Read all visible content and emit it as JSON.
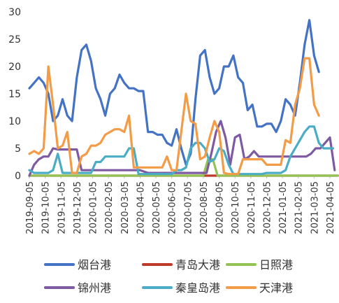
{
  "chart_data": {
    "type": "line",
    "title": "",
    "xlabel": "",
    "ylabel": "",
    "ylim": [
      0,
      30
    ],
    "yticks": [
      0,
      5,
      10,
      15,
      20,
      25,
      30
    ],
    "xticks": [
      "2019-09-05",
      "2019-10-05",
      "2019-11-05",
      "2019-12-05",
      "2020-01-05",
      "2020-02-05",
      "2020-03-05",
      "2020-04-05",
      "2020-05-05",
      "2020-06-05",
      "2020-07-05",
      "2020-08-05",
      "2020-09-05",
      "2020-10-05",
      "2020-11-05",
      "2020-12-05",
      "2021-01-05",
      "2021-02-05",
      "2021-03-05",
      "2021-04-05"
    ],
    "grid": false,
    "legend_position": "bottom",
    "series": [
      {
        "name": "烟台港",
        "color": "#4472c4",
        "x": [
          0,
          0.3,
          0.6,
          0.9,
          1.2,
          1.5,
          1.8,
          2.1,
          2.4,
          2.7,
          3.0,
          3.3,
          3.6,
          3.9,
          4.2,
          4.5,
          4.8,
          5.1,
          5.4,
          5.7,
          6.0,
          6.3,
          6.6,
          6.9,
          7.2,
          7.5,
          7.8,
          8.1,
          8.4,
          8.7,
          9.0,
          9.3,
          9.6,
          9.9,
          10.2,
          10.5,
          10.8,
          11.1,
          11.4,
          11.7,
          12.0,
          12.3,
          12.6,
          12.9,
          13.2,
          13.5,
          13.8,
          14.1,
          14.4,
          14.7,
          15.0,
          15.3,
          15.6,
          15.9,
          16.2,
          16.5,
          16.8,
          17.1,
          17.4,
          17.7,
          18.0,
          18.3,
          18.6,
          18.9,
          19.2,
          19.5
        ],
        "values": [
          16,
          17,
          18,
          17,
          15,
          10,
          11,
          14,
          11,
          10,
          18,
          23,
          24,
          21,
          16,
          14,
          11,
          15,
          16,
          18.5,
          17,
          16,
          16,
          15.5,
          15.5,
          8,
          8,
          7.5,
          7.5,
          6,
          5.5,
          8.5,
          5,
          2,
          4,
          14,
          22,
          23,
          18,
          15,
          16,
          20,
          20,
          22,
          18,
          17,
          12,
          13,
          9,
          9,
          9.5,
          9.5,
          8,
          10,
          14,
          13,
          11,
          17,
          24,
          28.5,
          22,
          19,
          null,
          null,
          null,
          null
        ]
      },
      {
        "name": "青岛大港",
        "color": "#c0392b",
        "x": [
          0,
          19.5
        ],
        "values": [
          0,
          0
        ]
      },
      {
        "name": "日照港",
        "color": "#92c353",
        "x": [
          0,
          0.5,
          1.0,
          1.5,
          2.0,
          2.5,
          3.0,
          3.5,
          4.0,
          4.5,
          5.0,
          6.0,
          7.0,
          8.0,
          9.0,
          10.0,
          10.5,
          11.0,
          11.3,
          11.6,
          11.9,
          12.2,
          12.5,
          13.0,
          14.0,
          15.0,
          16.0,
          17.0,
          18.0,
          19.0,
          19.5
        ],
        "values": [
          0,
          0,
          0,
          0,
          0,
          0,
          0,
          0,
          0,
          0,
          0,
          0,
          0,
          0,
          0,
          0,
          0,
          0,
          3,
          3,
          0,
          0,
          0,
          0,
          0,
          0,
          0,
          0,
          0,
          0,
          0
        ]
      },
      {
        "name": "锦州港",
        "color": "#7e5aa2",
        "x": [
          0,
          0.3,
          0.6,
          0.9,
          1.2,
          1.5,
          1.8,
          2.1,
          2.4,
          2.7,
          3.0,
          3.3,
          3.6,
          3.9,
          4.2,
          4.5,
          5.0,
          5.5,
          6.0,
          6.5,
          7.0,
          7.5,
          8.0,
          8.5,
          9.0,
          9.5,
          10.0,
          10.5,
          11.0,
          11.2,
          11.5,
          11.8,
          12.1,
          12.4,
          12.7,
          13.0,
          13.3,
          13.6,
          13.9,
          14.2,
          14.5,
          14.8,
          15.1,
          15.4,
          15.7,
          16.0,
          16.3,
          16.6,
          16.9,
          17.2,
          17.5,
          17.8,
          18.1,
          18.4,
          18.7,
          19.0,
          19.3
        ],
        "values": [
          0,
          2,
          3,
          3.5,
          3.5,
          5,
          4.8,
          4.8,
          4.8,
          4.8,
          4.8,
          1,
          1,
          1,
          1,
          1,
          1,
          1,
          1,
          1,
          1,
          0.5,
          0.5,
          0.5,
          0.5,
          0.5,
          0.5,
          0.5,
          0.5,
          0.5,
          4,
          8,
          10,
          7,
          2,
          7,
          7.5,
          3,
          3.5,
          4.5,
          3.5,
          3.5,
          3.5,
          3.5,
          3.5,
          3.5,
          3.5,
          3.5,
          3.5,
          3.5,
          3.5,
          4,
          5,
          5,
          6,
          7,
          1
        ]
      },
      {
        "name": "秦皇岛港",
        "color": "#4bacc6",
        "x": [
          0,
          0.3,
          0.6,
          0.9,
          1.2,
          1.5,
          1.8,
          2.1,
          2.4,
          2.7,
          3.0,
          3.3,
          3.6,
          3.9,
          4.2,
          4.5,
          4.8,
          5.1,
          5.4,
          5.7,
          6.0,
          6.3,
          6.6,
          6.9,
          7.2,
          7.5,
          7.8,
          8.1,
          8.4,
          8.7,
          9.0,
          9.3,
          9.6,
          9.9,
          10.2,
          10.5,
          10.8,
          11.1,
          11.4,
          11.7,
          12.0,
          12.3,
          12.6,
          12.9,
          13.2,
          13.5,
          13.8,
          14.1,
          14.4,
          14.7,
          15.0,
          15.3,
          15.6,
          15.9,
          16.2,
          16.5,
          16.8,
          17.1,
          17.4,
          17.7,
          18.0,
          18.3,
          18.6,
          18.9,
          19.2
        ],
        "values": [
          1,
          0.5,
          0.5,
          0.5,
          0.5,
          1,
          4,
          0.5,
          0.5,
          0.5,
          0.5,
          0.5,
          0.5,
          0.5,
          2.5,
          2.5,
          3.5,
          3.5,
          3.5,
          3.5,
          3.5,
          5,
          5,
          0.3,
          0.3,
          0.3,
          0.3,
          0.3,
          0.3,
          0.3,
          0.3,
          1,
          1,
          1.5,
          5,
          6,
          6,
          5,
          2.5,
          3,
          5,
          4.5,
          2,
          0.3,
          0.3,
          0.3,
          0.3,
          0.3,
          0.3,
          0.3,
          0.5,
          0.5,
          0.5,
          0.5,
          1,
          3.5,
          5,
          6.5,
          8,
          9,
          9,
          6,
          5,
          5,
          5
        ]
      },
      {
        "name": "天津港",
        "color": "#f39c47",
        "x": [
          0,
          0.3,
          0.6,
          0.9,
          1.2,
          1.5,
          1.8,
          2.1,
          2.4,
          2.7,
          3.0,
          3.3,
          3.6,
          3.9,
          4.2,
          4.5,
          4.8,
          5.1,
          5.4,
          5.7,
          6.0,
          6.3,
          6.6,
          6.9,
          7.2,
          7.5,
          7.8,
          8.1,
          8.4,
          8.7,
          9.0,
          9.3,
          9.6,
          9.9,
          10.2,
          10.5,
          10.8,
          11.1,
          11.4,
          11.7,
          12.0,
          12.3,
          12.6,
          12.9,
          13.2,
          13.5,
          13.8,
          14.1,
          14.4,
          14.7,
          15.0,
          15.3,
          15.6,
          15.9,
          16.2,
          16.5,
          16.8,
          17.1,
          17.4,
          17.7,
          18.0,
          18.3,
          18.6,
          18.9,
          19.2,
          19.5
        ],
        "values": [
          4,
          4.5,
          4,
          5,
          20,
          13,
          5,
          5.5,
          8,
          0.5,
          0.5,
          3.5,
          4,
          5.5,
          5.5,
          6,
          7.5,
          8,
          8.5,
          8.5,
          8,
          11,
          1.5,
          1.5,
          1.5,
          1.5,
          1.5,
          1.5,
          1.5,
          3.5,
          1,
          1,
          8,
          15,
          10,
          9.5,
          3,
          3.5,
          7,
          10,
          8,
          0.5,
          0.3,
          0.3,
          0.3,
          3,
          3,
          3,
          3,
          3,
          2,
          2,
          2,
          2,
          6.5,
          6,
          13,
          16,
          21.5,
          21.5,
          13,
          11,
          null,
          null,
          null,
          null
        ]
      }
    ]
  }
}
